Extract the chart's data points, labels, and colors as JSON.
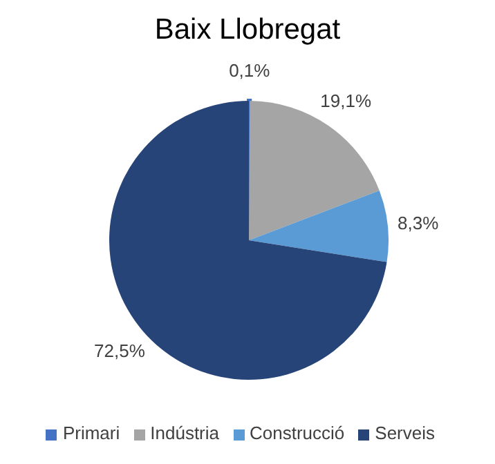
{
  "chart_data": {
    "type": "pie",
    "title": "Baix Llobregat",
    "categories": [
      "Primari",
      "Indústria",
      "Construcció",
      "Serveis"
    ],
    "values": [
      0.1,
      19.1,
      8.3,
      72.5
    ],
    "colors": [
      "#4472c4",
      "#a5a5a5",
      "#5b9bd5",
      "#264478"
    ],
    "value_labels": [
      "0,1%",
      "19,1%",
      "8,3%",
      "72,5%"
    ],
    "legend": "bottom"
  }
}
